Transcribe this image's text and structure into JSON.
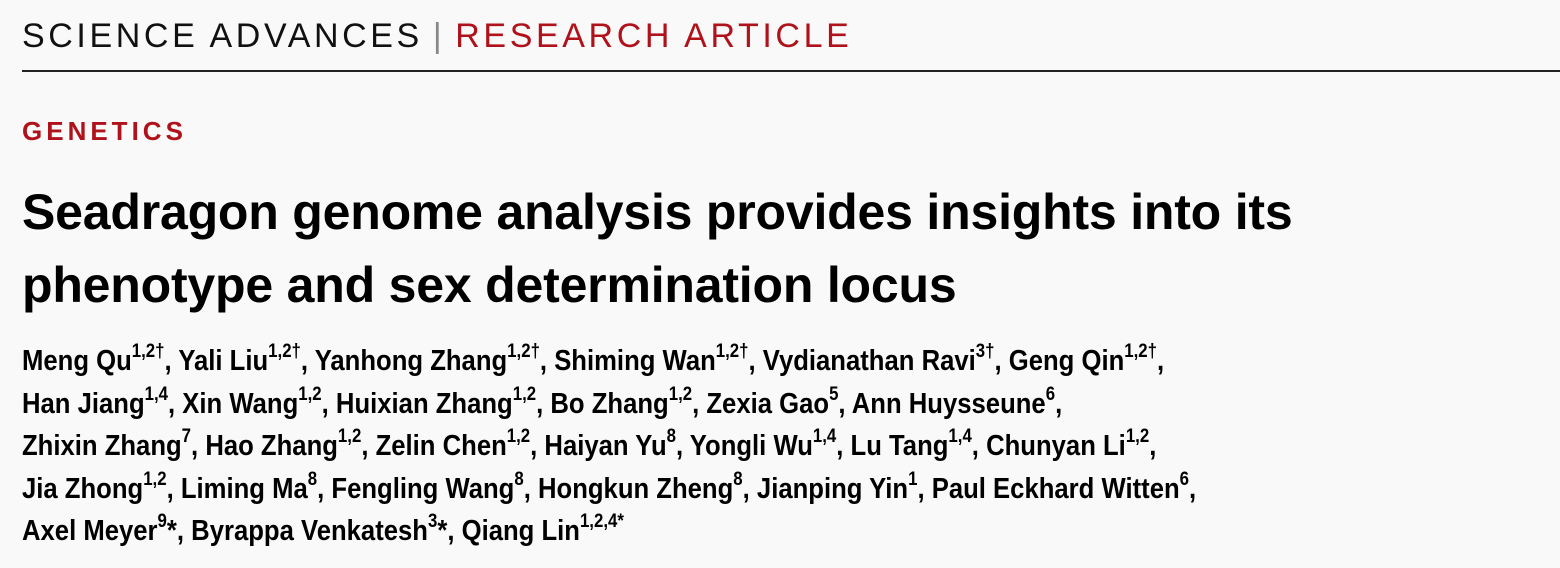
{
  "masthead": {
    "journal": "SCIENCE ADVANCES",
    "separator": "|",
    "article_type": "RESEARCH ARTICLE"
  },
  "section": "GENETICS",
  "title": {
    "line1": "Seadragon genome analysis provides insights into its",
    "line2": "phenotype and sex determination locus"
  },
  "authors": [
    {
      "name": "Meng Qu",
      "sup": "1,2†"
    },
    {
      "name": "Yali Liu",
      "sup": "1,2†"
    },
    {
      "name": "Yanhong Zhang",
      "sup": "1,2†"
    },
    {
      "name": "Shiming Wan",
      "sup": "1,2†"
    },
    {
      "name": "Vydianathan Ravi",
      "sup": "3†"
    },
    {
      "name": "Geng Qin",
      "sup": "1,2†"
    },
    {
      "name": "Han Jiang",
      "sup": "1,4"
    },
    {
      "name": "Xin Wang",
      "sup": "1,2"
    },
    {
      "name": "Huixian Zhang",
      "sup": "1,2"
    },
    {
      "name": "Bo Zhang",
      "sup": "1,2"
    },
    {
      "name": "Zexia Gao",
      "sup": "5"
    },
    {
      "name": "Ann Huysseune",
      "sup": "6"
    },
    {
      "name": "Zhixin Zhang",
      "sup": "7"
    },
    {
      "name": "Hao Zhang",
      "sup": "1,2"
    },
    {
      "name": "Zelin Chen",
      "sup": "1,2"
    },
    {
      "name": "Haiyan Yu",
      "sup": "8"
    },
    {
      "name": "Yongli Wu",
      "sup": "1,4"
    },
    {
      "name": "Lu Tang",
      "sup": "1,4"
    },
    {
      "name": "Chunyan Li",
      "sup": "1,2"
    },
    {
      "name": "Jia Zhong",
      "sup": "1,2"
    },
    {
      "name": "Liming Ma",
      "sup": "8"
    },
    {
      "name": "Fengling Wang",
      "sup": "8"
    },
    {
      "name": "Hongkun Zheng",
      "sup": "8"
    },
    {
      "name": "Jianping Yin",
      "sup": "1"
    },
    {
      "name": "Paul Eckhard Witten",
      "sup": "6"
    },
    {
      "name": "Axel Meyer",
      "sup": "9",
      "mark": "*"
    },
    {
      "name": "Byrappa Venkatesh",
      "sup": "3",
      "mark": "*"
    },
    {
      "name": "Qiang Lin",
      "sup": "1,2,4*"
    }
  ],
  "colors": {
    "accent": "#b0121b",
    "background": "#f9f9f9"
  }
}
